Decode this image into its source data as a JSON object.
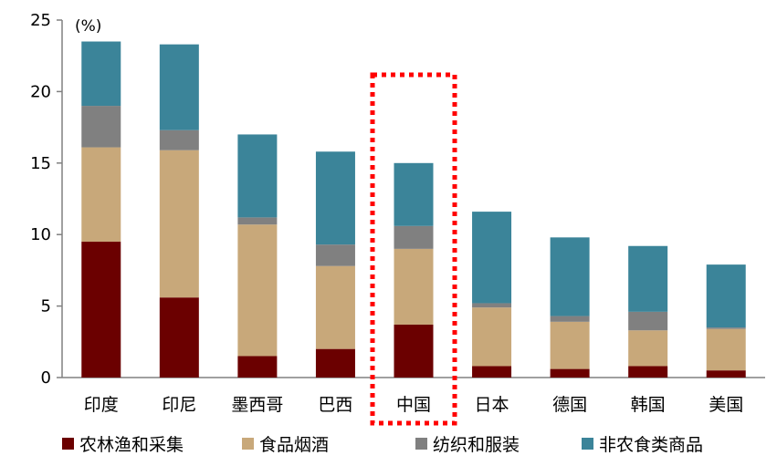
{
  "chart_data": {
    "type": "bar",
    "stacked": true,
    "unit_label": "(%)",
    "categories": [
      "印度",
      "印尼",
      "墨西哥",
      "巴西",
      "中国",
      "日本",
      "德国",
      "韩国",
      "美国"
    ],
    "series": [
      {
        "name": "农林渔和采集",
        "color": "#6B0000",
        "values": [
          9.5,
          5.6,
          1.5,
          2.0,
          3.7,
          0.8,
          0.6,
          0.8,
          0.5
        ]
      },
      {
        "name": "食品烟酒",
        "color": "#C8A87A",
        "values": [
          6.6,
          10.3,
          9.2,
          5.8,
          5.3,
          4.1,
          3.3,
          2.5,
          2.9
        ]
      },
      {
        "name": "纺织和服装",
        "color": "#808080",
        "values": [
          2.9,
          1.4,
          0.5,
          1.5,
          1.6,
          0.3,
          0.4,
          1.3,
          0.1
        ]
      },
      {
        "name": "非农食类商品",
        "color": "#3B8499",
        "values": [
          4.5,
          6.0,
          5.8,
          6.5,
          4.4,
          6.4,
          5.5,
          4.6,
          4.4
        ]
      }
    ],
    "ylim": [
      0,
      25
    ],
    "yticks": [
      0,
      5,
      10,
      15,
      20,
      25
    ],
    "highlight": "中国",
    "highlight_style": "red dotted box",
    "legend_position": "bottom",
    "grid": false
  }
}
